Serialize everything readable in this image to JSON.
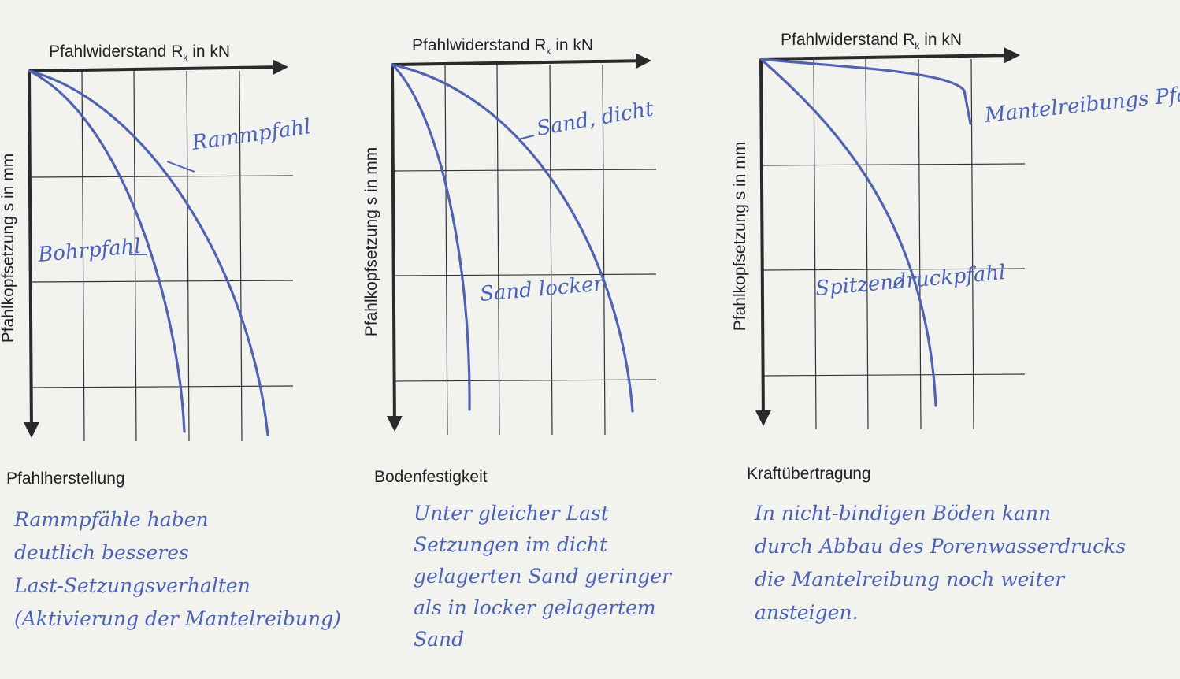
{
  "panels": [
    {
      "x_axis_label": {
        "main": "Pfahlwiderstand R",
        "sub": "k",
        "rest": " in kN"
      },
      "y_axis_label": "Pfahlkopfsetzung s in mm",
      "curve_labels": [
        "Rammpfahl",
        "Bohrpfahl"
      ],
      "caption": "Pfahlherstellung",
      "notes": [
        "Rammpfähle haben",
        "deutlich besseres",
        "Last-Setzungsverhalten",
        "(Aktivierung der Mantelreibung)"
      ]
    },
    {
      "x_axis_label": {
        "main": "Pfahlwiderstand R",
        "sub": "k",
        "rest": " in kN"
      },
      "y_axis_label": "Pfahlkopfsetzung s in mm",
      "curve_labels": [
        "Sand, dicht",
        "Sand locker"
      ],
      "caption": "Bodenfestigkeit",
      "notes": [
        "Unter gleicher Last",
        "Setzungen im dicht",
        "gelagerten Sand geringer",
        "als in locker gelagertem",
        "Sand"
      ]
    },
    {
      "x_axis_label": {
        "main": "Pfahlwiderstand R",
        "sub": "k",
        "rest": " in kN"
      },
      "y_axis_label": "Pfahlkopfsetzung s in mm",
      "curve_labels": [
        "Mantelreibungs Pfahl",
        "Spitzendruckpfahl"
      ],
      "caption": "Kraftübertragung",
      "notes": [
        "In nicht-bindigen Böden kann",
        "durch Abbau des Porenwasserdrucks",
        "die Mantelreibung noch weiter",
        "ansteigen."
      ]
    }
  ]
}
